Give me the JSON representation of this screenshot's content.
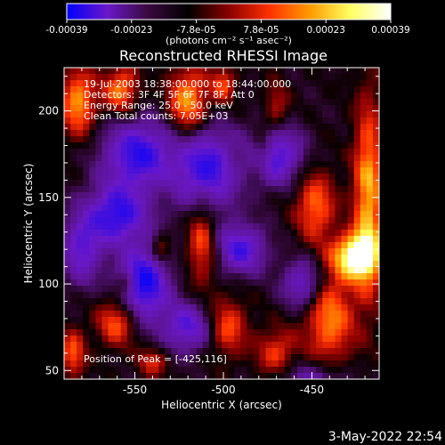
{
  "chart_data": {
    "type": "heatmap",
    "title": "Reconstructed RHESSI Image",
    "xlabel": "Heliocentric X (arcsec)",
    "ylabel": "Heliocentric Y (arcsec)",
    "xlim": [
      -590,
      -412
    ],
    "ylim": [
      45,
      225
    ],
    "x_ticks": [
      -550,
      -500,
      -450
    ],
    "y_ticks": [
      50,
      100,
      150,
      200
    ],
    "colorbar": {
      "range": [
        -0.00039,
        0.00039
      ],
      "tick_labels": [
        "-0.00039",
        "-0.00023",
        "-7.8e-05",
        "7.8e-05",
        "0.00023",
        "0.00039"
      ],
      "units": "(photons cm⁻² s⁻¹ asec⁻²)",
      "colors": [
        "#0000ff",
        "#6a18c8",
        "#3a0a40",
        "#000000",
        "#8a0000",
        "#ff3000",
        "#ff9a00",
        "#ffff60",
        "#ffffff"
      ]
    },
    "annotations": [
      "19-Jul-2003 18:38:00.000 to 18:44:00.000",
      "Detectors: 3F 4F 5F 6F 7F 8F, Att 0",
      "Energy Range: 25.0 - 50.0 keV",
      "Clean      Total counts: 7.05E+03"
    ],
    "peak_label": "Position of Peak = [-425,116]",
    "peak": [
      -425,
      116
    ],
    "blobs": [
      {
        "x": -425,
        "y": 116,
        "sx": 9,
        "sy": 9,
        "a": 1.0
      },
      {
        "x": -418,
        "y": 150,
        "sx": 6,
        "sy": 40,
        "a": 0.7
      },
      {
        "x": -440,
        "y": 80,
        "sx": 10,
        "sy": 20,
        "a": 0.6
      },
      {
        "x": -448,
        "y": 145,
        "sx": 8,
        "sy": 14,
        "a": 0.55
      },
      {
        "x": -582,
        "y": 205,
        "sx": 7,
        "sy": 14,
        "a": 0.65
      },
      {
        "x": -558,
        "y": 212,
        "sx": 7,
        "sy": 10,
        "a": 0.6
      },
      {
        "x": -520,
        "y": 205,
        "sx": 8,
        "sy": 14,
        "a": 0.7
      },
      {
        "x": -500,
        "y": 215,
        "sx": 5,
        "sy": 8,
        "a": 0.45
      },
      {
        "x": -470,
        "y": 200,
        "sx": 5,
        "sy": 12,
        "a": 0.35
      },
      {
        "x": -512,
        "y": 128,
        "sx": 6,
        "sy": 20,
        "a": 0.55
      },
      {
        "x": -535,
        "y": 120,
        "sx": 4,
        "sy": 6,
        "a": 0.4
      },
      {
        "x": -498,
        "y": 75,
        "sx": 8,
        "sy": 12,
        "a": 0.5
      },
      {
        "x": -470,
        "y": 60,
        "sx": 8,
        "sy": 10,
        "a": 0.45
      },
      {
        "x": -560,
        "y": 78,
        "sx": 8,
        "sy": 10,
        "a": 0.55
      },
      {
        "x": -585,
        "y": 60,
        "sx": 5,
        "sy": 10,
        "a": 0.5
      },
      {
        "x": -540,
        "y": 55,
        "sx": 6,
        "sy": 6,
        "a": 0.4
      },
      {
        "x": -478,
        "y": 178,
        "sx": 4,
        "sy": 8,
        "a": 0.35
      },
      {
        "x": -555,
        "y": 100,
        "sx": 4,
        "sy": 5,
        "a": 0.3
      },
      {
        "x": -548,
        "y": 175,
        "sx": 14,
        "sy": 14,
        "a": -0.8
      },
      {
        "x": -510,
        "y": 165,
        "sx": 12,
        "sy": 18,
        "a": -0.85
      },
      {
        "x": -470,
        "y": 175,
        "sx": 10,
        "sy": 12,
        "a": -0.75
      },
      {
        "x": -560,
        "y": 140,
        "sx": 12,
        "sy": 12,
        "a": -0.8
      },
      {
        "x": -545,
        "y": 100,
        "sx": 10,
        "sy": 15,
        "a": -0.9
      },
      {
        "x": -490,
        "y": 120,
        "sx": 10,
        "sy": 10,
        "a": -0.7
      },
      {
        "x": -455,
        "y": 100,
        "sx": 8,
        "sy": 10,
        "a": -0.6
      },
      {
        "x": -520,
        "y": 75,
        "sx": 10,
        "sy": 10,
        "a": -0.65
      },
      {
        "x": -450,
        "y": 40,
        "sx": 14,
        "sy": 10,
        "a": -0.5
      },
      {
        "x": -580,
        "y": 120,
        "sx": 8,
        "sy": 14,
        "a": -0.6
      }
    ]
  },
  "footer": {
    "timestamp": "3-May-2022 22:54"
  }
}
